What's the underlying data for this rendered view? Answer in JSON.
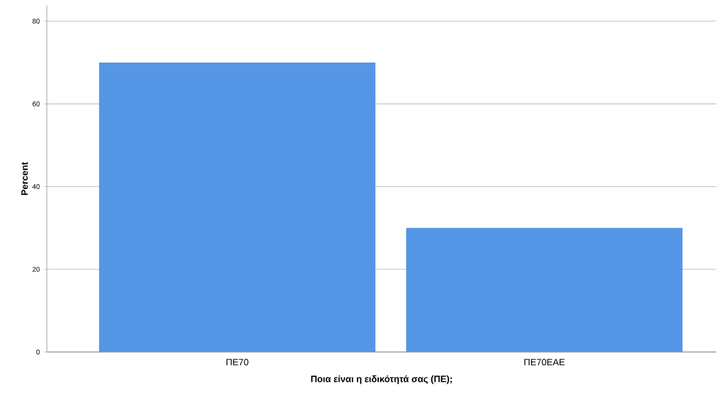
{
  "chart_data": {
    "type": "bar",
    "xlabel": "Ποια είναι η ειδικότητά σας (ΠΕ);",
    "ylabel": "Percent",
    "categories": [
      "ΠΕ70",
      "ΠΕ70ΕΑΕ"
    ],
    "values": [
      70,
      30
    ],
    "color": "#5596e6",
    "ylim": [
      0,
      83.8
    ],
    "yticks": [
      0,
      20,
      40,
      60,
      80
    ],
    "grid": "y"
  }
}
